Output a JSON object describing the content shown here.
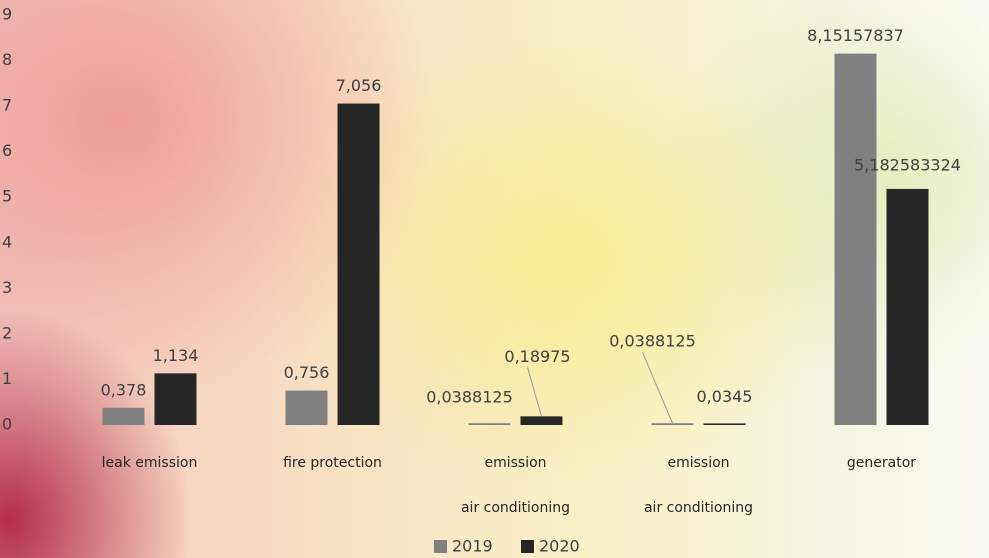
{
  "chart_data": {
    "type": "bar",
    "categories": [
      [
        "leak emission"
      ],
      [
        "fire protection"
      ],
      [
        "emission",
        "air conditioning"
      ],
      [
        "emission",
        "air conditioning"
      ],
      [
        "generator"
      ]
    ],
    "series": [
      {
        "name": "2019",
        "color": "#808080",
        "values": [
          0.378,
          0.756,
          0.0388125,
          0.0388125,
          8.15157837
        ],
        "value_labels": [
          "0,378",
          "0,756",
          "0,0388125",
          "0,0388125",
          "8,15157837"
        ]
      },
      {
        "name": "2020",
        "color": "#262626",
        "values": [
          1.134,
          7.056,
          0.18975,
          0.0345,
          5.182583324
        ],
        "value_labels": [
          "1,134",
          "7,056",
          "0,18975",
          "0,0345",
          "5,182583324"
        ]
      }
    ],
    "ylim": [
      0,
      9
    ],
    "yticks": [
      0,
      1,
      2,
      3,
      4,
      5,
      6,
      7,
      8,
      9
    ],
    "grid": false,
    "legend": "bottom"
  }
}
